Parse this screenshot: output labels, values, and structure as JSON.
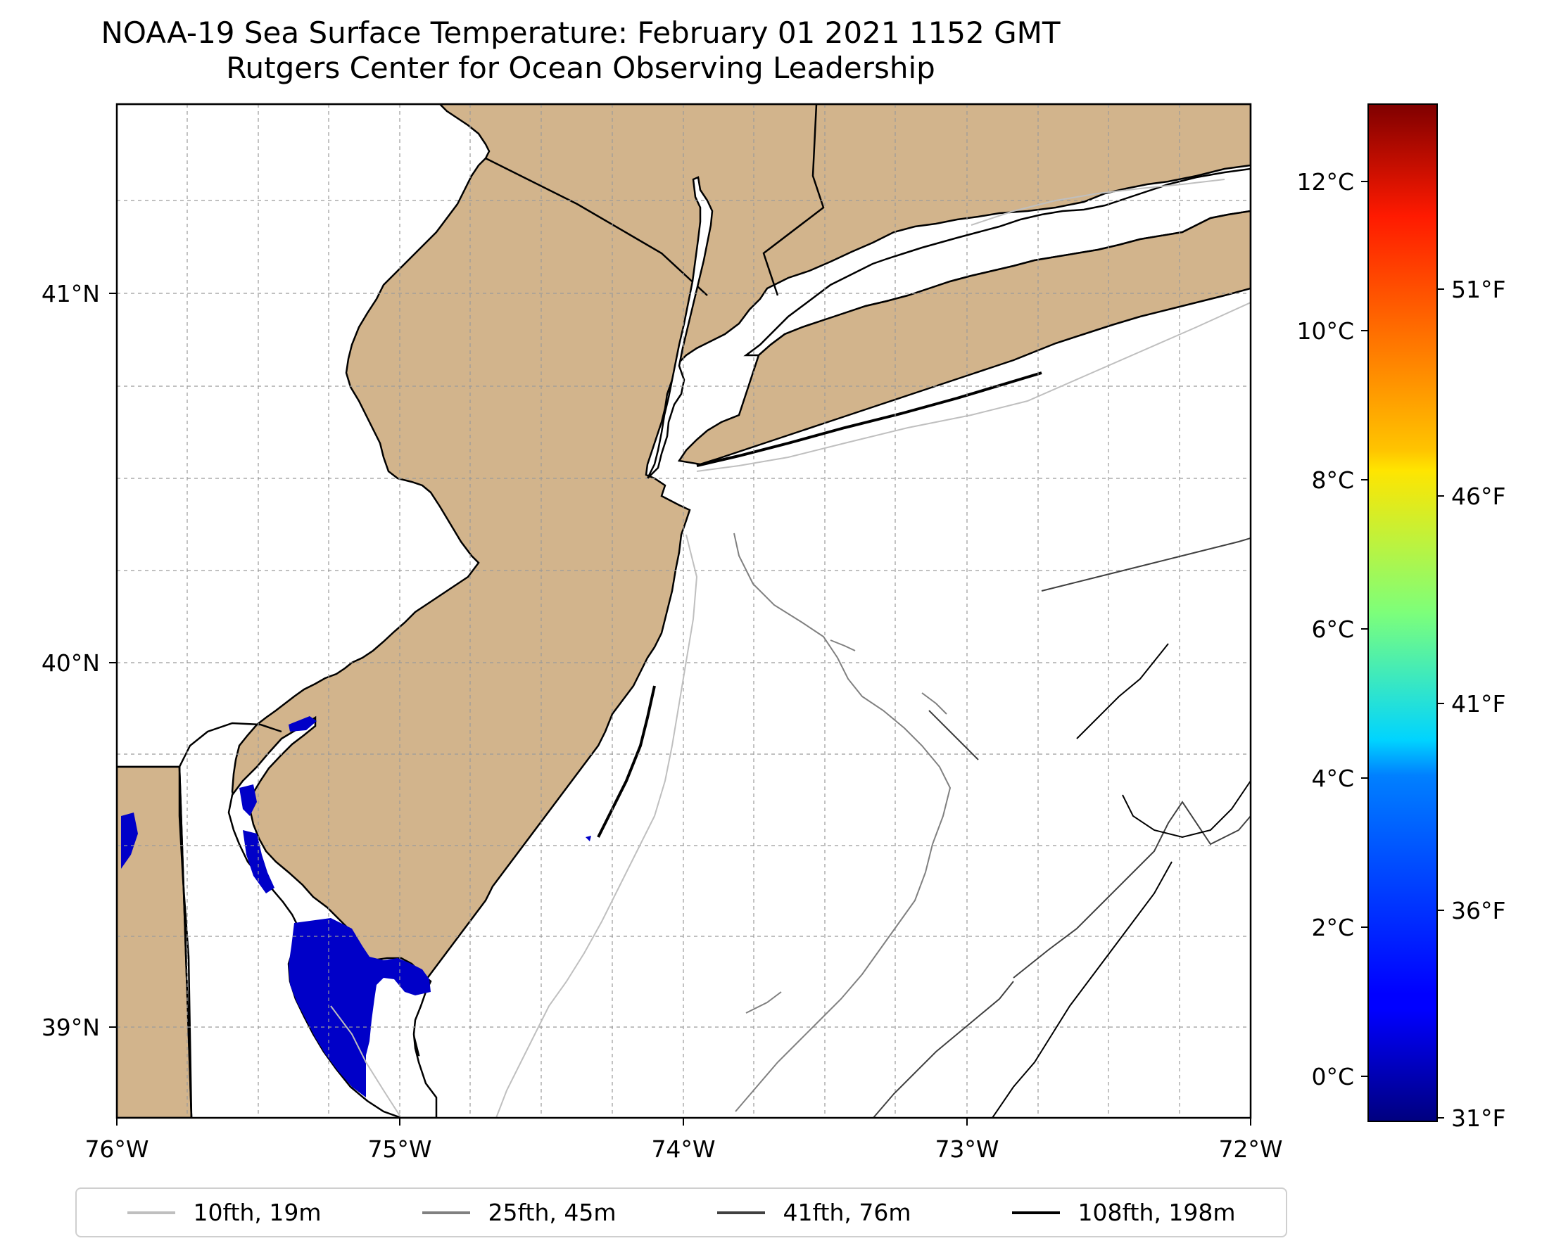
{
  "title": {
    "line1": "NOAA-19 Sea Surface Temperature: February 01 2021 1152 GMT",
    "line2": "Rutgers Center for Ocean Observing Leadership"
  },
  "map": {
    "lon_range": [
      -76,
      -72
    ],
    "lat_range": [
      38.73,
      41.52
    ],
    "lon_ticks": [
      "76°W",
      "75°W",
      "74°W",
      "73°W",
      "72°W"
    ],
    "lat_ticks": [
      "41°N",
      "40°N",
      "39°N"
    ],
    "land_color": "#d2b48c",
    "ocean_color": "#ffffff",
    "gridlines": true
  },
  "colorbar": {
    "colormap": "jet",
    "celsius_ticks": [
      "12°C",
      "10°C",
      "8°C",
      "6°C",
      "4°C",
      "2°C",
      "0°C"
    ],
    "fahrenheit_ticks": [
      "51°F",
      "46°F",
      "41°F",
      "36°F",
      "31°F"
    ]
  },
  "legend": {
    "items": [
      {
        "label": "10fth, 19m",
        "color": "#bfbfbf"
      },
      {
        "label": "25fth, 45m",
        "color": "#808080"
      },
      {
        "label": "41fth, 76m",
        "color": "#404040"
      },
      {
        "label": "108fth, 198m",
        "color": "#000000"
      }
    ]
  }
}
